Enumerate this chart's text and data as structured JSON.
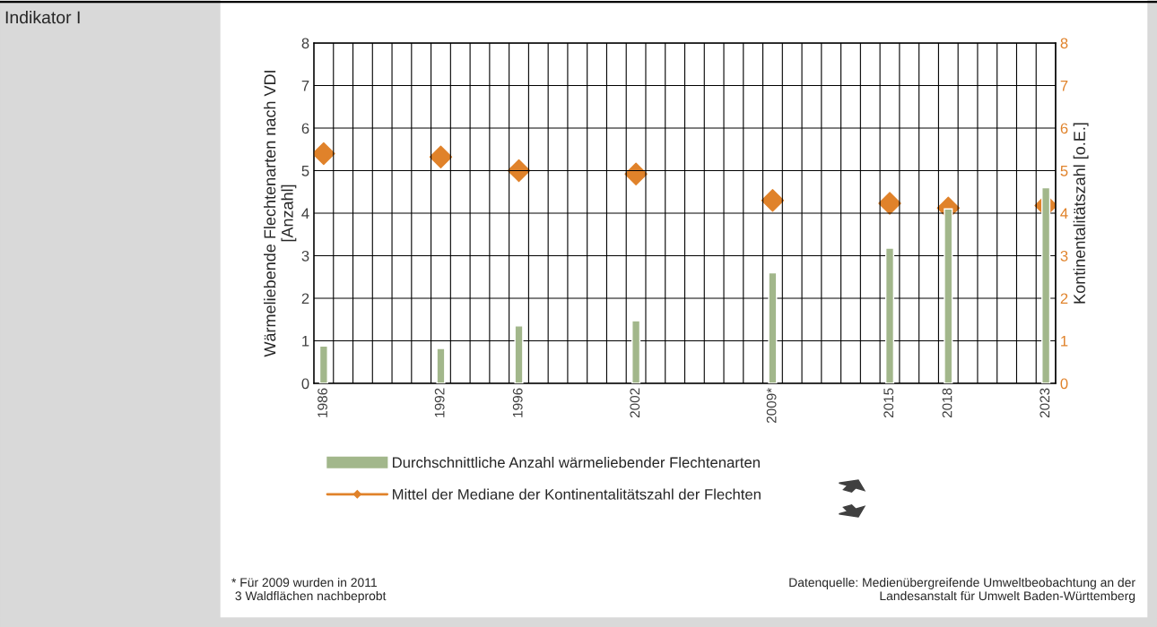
{
  "chart_data": {
    "type": "bar",
    "title": "Indikator I",
    "ylabel": "Wärmeliebende Flechtenarten nach VDI\n[Anzahl]",
    "y2label": "Kontinentalitätszahl [o.E.]",
    "categories": [
      "1986",
      null,
      null,
      null,
      null,
      null,
      "1992",
      null,
      null,
      null,
      "1996",
      null,
      null,
      null,
      null,
      null,
      "2002",
      null,
      null,
      null,
      null,
      null,
      null,
      "2009*",
      null,
      null,
      null,
      null,
      null,
      "2015",
      null,
      null,
      "2018",
      null,
      null,
      null,
      null,
      "2023"
    ],
    "series": [
      {
        "name": "Durchschnittliche Anzahl wärmeliebender Flechtenarten",
        "color": "#a2b78b",
        "values": [
          0.88,
          null,
          null,
          null,
          null,
          null,
          0.82,
          null,
          null,
          null,
          1.35,
          null,
          null,
          null,
          null,
          null,
          1.47,
          null,
          null,
          null,
          null,
          null,
          null,
          2.6,
          null,
          null,
          null,
          null,
          null,
          3.18,
          null,
          null,
          4.1,
          null,
          null,
          null,
          null,
          4.6
        ]
      },
      {
        "name": "Mittel der Mediane der Kontinentalitätszahl der Flechten",
        "type": "scatter",
        "axis": "y2",
        "marker": "diamond",
        "color": "#e0822a",
        "values": [
          5.4,
          null,
          null,
          null,
          null,
          null,
          5.32,
          null,
          null,
          null,
          5.0,
          null,
          null,
          null,
          null,
          null,
          4.92,
          null,
          null,
          null,
          null,
          null,
          null,
          4.3,
          null,
          null,
          null,
          null,
          null,
          4.23,
          null,
          null,
          4.12,
          null,
          null,
          null,
          null,
          4.18
        ]
      }
    ],
    "ylim": [
      0,
      8
    ],
    "yticks": [
      0,
      1,
      2,
      3,
      4,
      5,
      6,
      7,
      8
    ],
    "y2lim": [
      0,
      8
    ],
    "y2ticks": [
      0,
      1,
      2,
      3,
      4,
      5,
      6,
      7,
      8
    ],
    "grid": true,
    "legend": "bottom",
    "annotations": [
      "* Für 2009 wurden in 2011\n 3 Waldflächen nachbeprobt",
      "Datenquelle: Medienübergreifende Umweltbeobachtung an der\nLandesanstalt für Umwelt Baden-Württemberg"
    ]
  }
}
